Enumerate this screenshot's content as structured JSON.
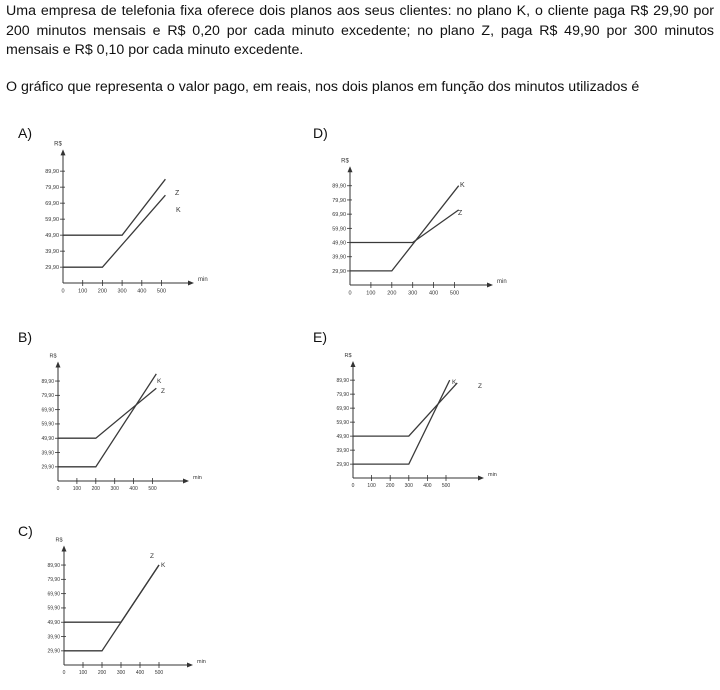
{
  "statement": "Uma empresa de telefonia fixa oferece dois planos aos seus clientes: no plano K, o cliente paga R$ 29,90 por 200 minutos mensais e R$ 0,20 por cada minuto excedente; no plano Z, paga R$ 49,90 por 300 minutos mensais e R$ 0,10 por cada minuto excedente.",
  "question": "O gráfico que representa o valor pago, em reais, nos dois planos em função dos minutos utilizados é",
  "y_axis_label": "R$",
  "x_axis_label": "min",
  "y_ticks": [
    "29,90",
    "39,90",
    "49,90",
    "59,90",
    "69,90",
    "79,90",
    "89,90"
  ],
  "x_ticks": [
    "0",
    "100",
    "200",
    "300",
    "400",
    "500"
  ],
  "options": [
    {
      "letter": "A)",
      "series": [
        {
          "name": "Z",
          "points": [
            [
              0,
              49.9
            ],
            [
              300,
              49.9
            ],
            [
              520,
              84.9
            ]
          ]
        },
        {
          "name": "K",
          "points": [
            [
              0,
              29.9
            ],
            [
              200,
              29.9
            ],
            [
              520,
              74.9
            ]
          ]
        }
      ]
    },
    {
      "letter": "D)",
      "series": [
        {
          "name": "K",
          "points": [
            [
              0,
              29.9
            ],
            [
              200,
              29.9
            ],
            [
              520,
              89.9
            ]
          ]
        },
        {
          "name": "Z",
          "points": [
            [
              0,
              49.9
            ],
            [
              300,
              49.9
            ],
            [
              520,
              72.9
            ]
          ]
        }
      ]
    },
    {
      "letter": "B)",
      "series": [
        {
          "name": "K",
          "points": [
            [
              0,
              29.9
            ],
            [
              200,
              29.9
            ],
            [
              520,
              94.9
            ]
          ]
        },
        {
          "name": "Z",
          "points": [
            [
              0,
              49.9
            ],
            [
              200,
              49.9
            ],
            [
              520,
              84.9
            ]
          ]
        }
      ]
    },
    {
      "letter": "E)",
      "series": [
        {
          "name": "K",
          "points": [
            [
              0,
              29.9
            ],
            [
              300,
              29.9
            ],
            [
              520,
              89.9
            ]
          ]
        },
        {
          "name": "Z",
          "points": [
            [
              0,
              49.9
            ],
            [
              300,
              49.9
            ],
            [
              560,
              87.9
            ]
          ]
        }
      ]
    },
    {
      "letter": "C)",
      "series": [
        {
          "name": "Z",
          "points": [
            [
              0,
              49.9
            ],
            [
              300,
              49.9
            ],
            [
              500,
              89.9
            ]
          ]
        },
        {
          "name": "K",
          "points": [
            [
              0,
              29.9
            ],
            [
              200,
              29.9
            ],
            [
              500,
              89.9
            ]
          ]
        }
      ]
    }
  ]
}
